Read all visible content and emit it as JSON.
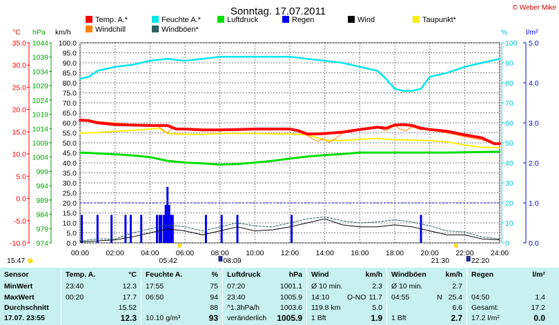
{
  "title": "Sonntag. 17.07.2011",
  "credit": "© Weber Mike",
  "colors": {
    "temp": "#ff0000",
    "feuchte": "#00e5ee",
    "luftdruck": "#00dd00",
    "regen": "#0000ee",
    "wind": "#000000",
    "taupunkt": "#ffee00",
    "windchill": "#ff8000",
    "windboeen": "#2f6060",
    "grid": "#7a7a7a",
    "stats_bg": "#c8f0f0",
    "sun": "#ffdd00"
  },
  "axis_units": {
    "temp": "°C",
    "pressure": "hPa",
    "wind": "km/h",
    "humidity": "%",
    "rain": "l/m²"
  },
  "chart_data": {
    "type": "line",
    "legend": [
      {
        "key": "temp",
        "label": "Temp. A.*"
      },
      {
        "key": "feuchte",
        "label": "Feuchte A.*"
      },
      {
        "key": "luftdruck",
        "label": "Luftdruck"
      },
      {
        "key": "regen",
        "label": "Regen"
      },
      {
        "key": "wind",
        "label": "Wind"
      },
      {
        "key": "taupunkt",
        "label": "Taupunkt*"
      },
      {
        "key": "windchill",
        "label": "Windchill"
      },
      {
        "key": "windboeen",
        "label": "Windböen*"
      }
    ],
    "x_ticks": [
      "00:00",
      "02:00",
      "04:00",
      "06:00",
      "08:00",
      "10:00",
      "12:00",
      "14:00",
      "16:00",
      "18:00",
      "20:00",
      "22:00",
      "24:00"
    ],
    "x_range": [
      0,
      24
    ],
    "axes": {
      "temp_ticks": [
        "35.0",
        "30.0",
        "25.0",
        "20.0",
        "15.0",
        "10.0",
        "5.0",
        "0.0",
        "-5.0",
        "-10.0"
      ],
      "temp_range": [
        -10,
        35
      ],
      "pressure_ticks": [
        "1044",
        "1039",
        "1034",
        "1029",
        "1024",
        "1019",
        "1014",
        "1009",
        "1004",
        "999",
        "994",
        "989",
        "984",
        "979",
        "974"
      ],
      "pressure_range": [
        974,
        1044
      ],
      "wind_ticks": [
        "100.0",
        "95.0",
        "90.0",
        "85.0",
        "80.0",
        "75.0",
        "70.0",
        "65.0",
        "60.0",
        "55.0",
        "50.0",
        "45.0",
        "40.0",
        "35.0",
        "30.0",
        "25.0",
        "20.0",
        "15.0",
        "10.0",
        "5.0",
        "0.0"
      ],
      "wind_range": [
        0,
        100
      ],
      "humidity_ticks": [
        "100",
        "90",
        "80",
        "70",
        "60",
        "50",
        "40",
        "30",
        "20",
        "10",
        "0"
      ],
      "humidity_range": [
        0,
        100
      ],
      "rain_ticks": [
        "5.0",
        "4.0",
        "3.0",
        "2.0",
        "1.0",
        "0.0"
      ],
      "rain_range": [
        0,
        5
      ]
    },
    "series": [
      {
        "key": "temp",
        "name": "Temp. A.*",
        "unit": "°C",
        "x": [
          0,
          0.5,
          1,
          2,
          3,
          4,
          4.5,
          5,
          5.5,
          6,
          7,
          8,
          9,
          10,
          11,
          12,
          12.5,
          13,
          13.5,
          14,
          15,
          16,
          17,
          17.5,
          18,
          18.5,
          19,
          19.5,
          20,
          21,
          22,
          23,
          23.7,
          24
        ],
        "y": [
          17.6,
          17.5,
          17.0,
          16.6,
          16.5,
          16.4,
          16.4,
          16.4,
          15.6,
          15.6,
          15.4,
          15.4,
          15.5,
          15.6,
          15.6,
          15.6,
          15.2,
          14.5,
          14.5,
          14.6,
          14.9,
          15.5,
          16.0,
          15.8,
          16.5,
          16.6,
          16.4,
          15.8,
          15.5,
          15.1,
          14.3,
          13.6,
          12.3,
          12.3
        ]
      },
      {
        "key": "feuchte",
        "name": "Feuchte A.*",
        "unit": "%",
        "x": [
          0,
          0.5,
          1,
          2,
          3,
          4,
          5,
          6,
          7,
          8,
          9,
          10,
          11,
          12,
          13,
          14,
          15,
          16,
          17,
          17.5,
          18,
          18.5,
          19,
          19.5,
          20,
          21,
          22,
          23,
          24
        ],
        "y": [
          82,
          83,
          86,
          88,
          89,
          91,
          92,
          91,
          92,
          93,
          93,
          93,
          93,
          93,
          92,
          91,
          90,
          88,
          86,
          82,
          77,
          76,
          76,
          77,
          83,
          85,
          88,
          90,
          92
        ]
      },
      {
        "key": "luftdruck",
        "name": "Luftdruck",
        "unit": "hPa",
        "x": [
          0,
          1,
          2,
          3,
          4,
          5,
          6,
          7,
          8,
          9,
          10,
          11,
          12,
          13,
          14,
          15,
          16,
          17,
          18,
          19,
          20,
          21,
          22,
          23,
          24
        ],
        "y": [
          1005.6,
          1005.3,
          1005.0,
          1004.6,
          1004.0,
          1002.7,
          1002.1,
          1001.8,
          1001.4,
          1001.6,
          1002.1,
          1002.7,
          1003.5,
          1004.2,
          1004.7,
          1005.1,
          1005.6,
          1005.6,
          1005.6,
          1005.6,
          1005.6,
          1005.6,
          1005.7,
          1005.8,
          1005.9
        ]
      },
      {
        "key": "taupunkt",
        "name": "Taupunkt*",
        "unit": "°C",
        "x": [
          0,
          1,
          2,
          3,
          4,
          4.5,
          5,
          6,
          7,
          8,
          9,
          10,
          11,
          12,
          13,
          14,
          15,
          16,
          17,
          18,
          19,
          20,
          21,
          22,
          23,
          24
        ],
        "y": [
          14.7,
          14.8,
          15.1,
          15.3,
          15.6,
          15.8,
          14.6,
          14.4,
          14.4,
          14.6,
          14.6,
          14.6,
          14.5,
          14.5,
          14.3,
          13.1,
          13.0,
          13.3,
          13.5,
          13.2,
          13.1,
          13.0,
          12.7,
          12.0,
          11.5,
          11.4
        ]
      },
      {
        "key": "windchill",
        "name": "Windchill",
        "unit": "°C",
        "x": [
          0,
          4,
          4.5,
          4.8,
          5,
          5.2,
          5.5,
          6,
          12,
          13,
          13.3,
          13.6,
          13.9,
          14.2,
          14.5,
          15,
          16,
          17,
          17.5,
          18,
          18.3,
          18.6,
          19,
          19.5,
          20,
          24
        ],
        "y": [
          17.6,
          16.4,
          16.2,
          15.2,
          14.7,
          15.6,
          15.6,
          15.6,
          15.6,
          14.2,
          13.4,
          12.8,
          13.5,
          12.6,
          13.2,
          14.6,
          15.5,
          16.0,
          15.2,
          16.4,
          15.6,
          15.2,
          16.1,
          15.4,
          15.5,
          12.3
        ]
      },
      {
        "key": "wind",
        "name": "Wind",
        "unit": "km/h",
        "x": [
          0,
          1,
          2,
          3,
          4,
          5,
          6,
          7,
          8,
          9,
          10,
          11,
          12,
          13,
          14,
          15,
          16,
          17,
          18,
          19,
          20,
          21,
          22,
          23,
          24
        ],
        "y": [
          0.5,
          1.0,
          1.5,
          3.0,
          5.0,
          7.0,
          6.0,
          4.0,
          6.0,
          8.0,
          6.0,
          6.5,
          8.0,
          10.0,
          12.0,
          9.0,
          8.0,
          8.0,
          9.0,
          8.0,
          6.0,
          4.0,
          4.0,
          2.0,
          1.5
        ]
      },
      {
        "key": "windboeen",
        "name": "Windböen*",
        "unit": "km/h",
        "x": [
          0,
          1,
          2,
          3,
          4,
          5,
          6,
          7,
          8,
          9,
          10,
          11,
          12,
          13,
          14,
          15,
          16,
          17,
          18,
          19,
          20,
          21,
          22,
          23,
          24
        ],
        "y": [
          1.0,
          2.0,
          2.0,
          5.0,
          7.0,
          9.0,
          8.0,
          6.0,
          8.0,
          10.0,
          8.5,
          8.0,
          10.0,
          12.0,
          13.0,
          11.0,
          10.0,
          10.5,
          11.5,
          10.5,
          8.5,
          6.0,
          5.5,
          3.0,
          2.0
        ]
      },
      {
        "key": "regen",
        "name": "Regen",
        "unit": "l/m²",
        "type": "bar",
        "x": [
          0.1,
          1.0,
          1.8,
          2.6,
          2.9,
          3.5,
          4.4,
          4.55,
          4.65,
          4.8,
          4.9,
          5.0,
          5.1,
          5.2,
          5.3,
          7.2,
          8.1,
          9.0,
          12.1,
          19.5
        ],
        "y": [
          0.7,
          0.7,
          0.7,
          0.7,
          0.7,
          0.7,
          0.7,
          0.7,
          0.7,
          0.7,
          0.95,
          1.4,
          0.95,
          0.7,
          0.7,
          0.7,
          0.7,
          0.7,
          0.7,
          0.7
        ]
      }
    ],
    "sun": {
      "rise_label": "05:42",
      "set_label": "21:30",
      "rise_x": 5.7,
      "set_x": 21.5
    },
    "moon": {
      "set_label": "08:09",
      "rise_label": "22:20",
      "set_x": 8.15,
      "rise_x": 22.33
    },
    "bottom_left_label": "15:47",
    "grid": true
  },
  "stats": {
    "sensor": {
      "header": "Sensor",
      "rows": [
        "MinWert",
        "MaxWert",
        "Durchschnitt",
        "17.07. 23:55"
      ]
    },
    "temp": {
      "header": "Temp. A.",
      "unit": "°C",
      "rows": [
        [
          "23:40",
          "12.3"
        ],
        [
          "00:20",
          "17.7"
        ],
        [
          "",
          "15.52"
        ],
        [
          "",
          "12.3"
        ]
      ]
    },
    "feuchte": {
      "header": "Feuchte A.",
      "unit": "%",
      "rows": [
        [
          "17:55",
          "75"
        ],
        [
          "06:50",
          "94"
        ],
        [
          "",
          "88"
        ],
        [
          "10.10 g/m³",
          "93"
        ]
      ]
    },
    "luftdruck": {
      "header": "Luftdruck",
      "unit": "hPa",
      "rows": [
        [
          "07:20",
          "1001.1"
        ],
        [
          "23:40",
          "1005.9"
        ],
        [
          "^1.3hPa/h",
          "1003.6"
        ],
        [
          "veränderlich",
          "1005.9"
        ]
      ]
    },
    "wind": {
      "header": "Wind",
      "unit": "km/h",
      "rows": [
        [
          "Ø 10 min.",
          "",
          "2.3"
        ],
        [
          "14:10",
          "O-NO",
          "11.7"
        ],
        [
          "119.8 km",
          "",
          "5.0"
        ],
        [
          "1 Bft",
          "",
          "1.9"
        ]
      ]
    },
    "windboeen": {
      "header": "Windböen",
      "unit": "km/h",
      "rows": [
        [
          "Ø 10 min.",
          "",
          "2.7"
        ],
        [
          "04:55",
          "N",
          "25.4"
        ],
        [
          "",
          "",
          "6.6"
        ],
        [
          "1 Bft",
          "",
          "2.7"
        ]
      ]
    },
    "regen": {
      "header": "Regen",
      "unit": "l/m²",
      "rows": [
        [
          "",
          "",
          ""
        ],
        [
          "04:50",
          "",
          "1.4"
        ],
        [
          "Gesamt:",
          "",
          "17.2"
        ],
        [
          "17.2 l/m²",
          "",
          "0.0"
        ]
      ]
    }
  }
}
